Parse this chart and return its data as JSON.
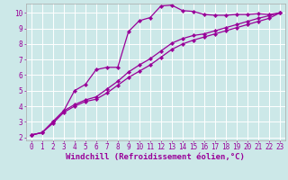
{
  "bg_color": "#cce8e8",
  "grid_color": "#ffffff",
  "line_color": "#990099",
  "spine_color": "#aaaaaa",
  "xlabel": "Windchill (Refroidissement éolien,°C)",
  "xlim": [
    -0.5,
    23.5
  ],
  "ylim": [
    1.8,
    10.6
  ],
  "xticks": [
    0,
    1,
    2,
    3,
    4,
    5,
    6,
    7,
    8,
    9,
    10,
    11,
    12,
    13,
    14,
    15,
    16,
    17,
    18,
    19,
    20,
    21,
    22,
    23
  ],
  "yticks": [
    2,
    3,
    4,
    5,
    6,
    7,
    8,
    9,
    10
  ],
  "line1_x": [
    0,
    1,
    2,
    3,
    4,
    5,
    6,
    7,
    8,
    9,
    10,
    11,
    12,
    13,
    14,
    15,
    16,
    17,
    18,
    19,
    20,
    21,
    22,
    23
  ],
  "line1_y": [
    2.15,
    2.3,
    3.0,
    3.7,
    5.0,
    5.4,
    6.35,
    6.5,
    6.5,
    8.8,
    9.5,
    9.7,
    10.45,
    10.5,
    10.15,
    10.1,
    9.9,
    9.85,
    9.85,
    9.9,
    9.9,
    9.95,
    9.9,
    10.0
  ],
  "line2_x": [
    0,
    1,
    2,
    3,
    4,
    5,
    6,
    7,
    8,
    9,
    10,
    11,
    12,
    13,
    14,
    15,
    16,
    17,
    18,
    19,
    20,
    21,
    22,
    23
  ],
  "line2_y": [
    2.15,
    2.3,
    3.0,
    3.7,
    4.1,
    4.4,
    4.6,
    5.1,
    5.6,
    6.2,
    6.65,
    7.05,
    7.55,
    8.05,
    8.35,
    8.55,
    8.65,
    8.85,
    9.05,
    9.25,
    9.45,
    9.65,
    9.82,
    10.0
  ],
  "line3_x": [
    0,
    1,
    2,
    3,
    4,
    5,
    6,
    7,
    8,
    9,
    10,
    11,
    12,
    13,
    14,
    15,
    16,
    17,
    18,
    19,
    20,
    21,
    22,
    23
  ],
  "line3_y": [
    2.15,
    2.3,
    2.9,
    3.6,
    4.0,
    4.3,
    4.45,
    4.85,
    5.35,
    5.85,
    6.25,
    6.65,
    7.15,
    7.65,
    8.0,
    8.25,
    8.45,
    8.65,
    8.85,
    9.05,
    9.25,
    9.45,
    9.65,
    10.0
  ],
  "marker": "D",
  "markersize": 2.2,
  "linewidth": 0.9,
  "tick_fontsize": 5.5,
  "label_fontsize": 6.5
}
